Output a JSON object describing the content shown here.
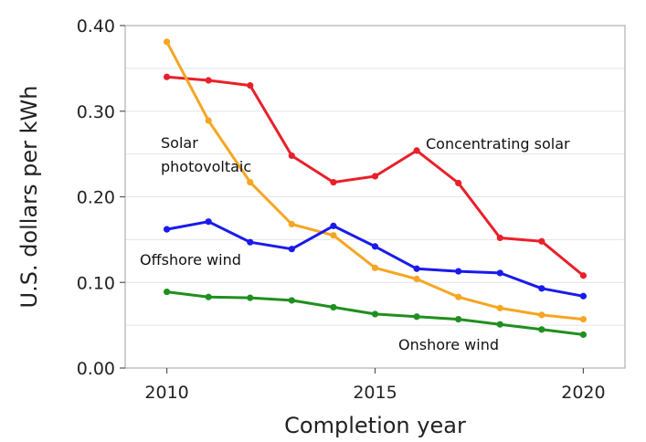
{
  "chart_data": {
    "type": "line",
    "xlabel": "Completion year",
    "ylabel": "U.S. dollars per kWh",
    "xlim": [
      2009,
      2021
    ],
    "ylim": [
      0,
      0.4
    ],
    "x_ticks": [
      2010,
      2015,
      2020
    ],
    "x_tick_labels": [
      "2010",
      "2015",
      "2020"
    ],
    "y_ticks": [
      0,
      0.1,
      0.2,
      0.3,
      0.4
    ],
    "y_tick_labels": [
      "0.00",
      "0.10",
      "0.20",
      "0.30",
      "0.40"
    ],
    "grid": true,
    "legend": "none (series labeled directly on plot)",
    "x": [
      2010,
      2011,
      2012,
      2013,
      2014,
      2015,
      2016,
      2017,
      2018,
      2019,
      2020
    ],
    "series": [
      {
        "name": "Concentrating solar",
        "label_lines": [
          "Concentrating solar"
        ],
        "color": "#e8202a",
        "values": [
          0.34,
          0.336,
          0.33,
          0.248,
          0.217,
          0.224,
          0.254,
          0.216,
          0.152,
          0.148,
          0.108
        ]
      },
      {
        "name": "Solar photovoltaic",
        "label_lines": [
          "Solar",
          "photovoltaic"
        ],
        "color": "#f5a623",
        "values": [
          0.381,
          0.289,
          0.217,
          0.168,
          0.155,
          0.117,
          0.104,
          0.083,
          0.07,
          0.062,
          0.057
        ]
      },
      {
        "name": "Offshore wind",
        "label_lines": [
          "Offshore wind"
        ],
        "color": "#1a1aeb",
        "values": [
          0.162,
          0.171,
          0.147,
          0.139,
          0.166,
          0.142,
          0.116,
          0.113,
          0.111,
          0.093,
          0.084
        ]
      },
      {
        "name": "Onshore wind",
        "label_lines": [
          "Onshore wind"
        ],
        "color": "#1f8f1f",
        "values": [
          0.089,
          0.083,
          0.082,
          0.079,
          0.071,
          0.063,
          0.06,
          0.057,
          0.051,
          0.045,
          0.039
        ]
      }
    ]
  }
}
